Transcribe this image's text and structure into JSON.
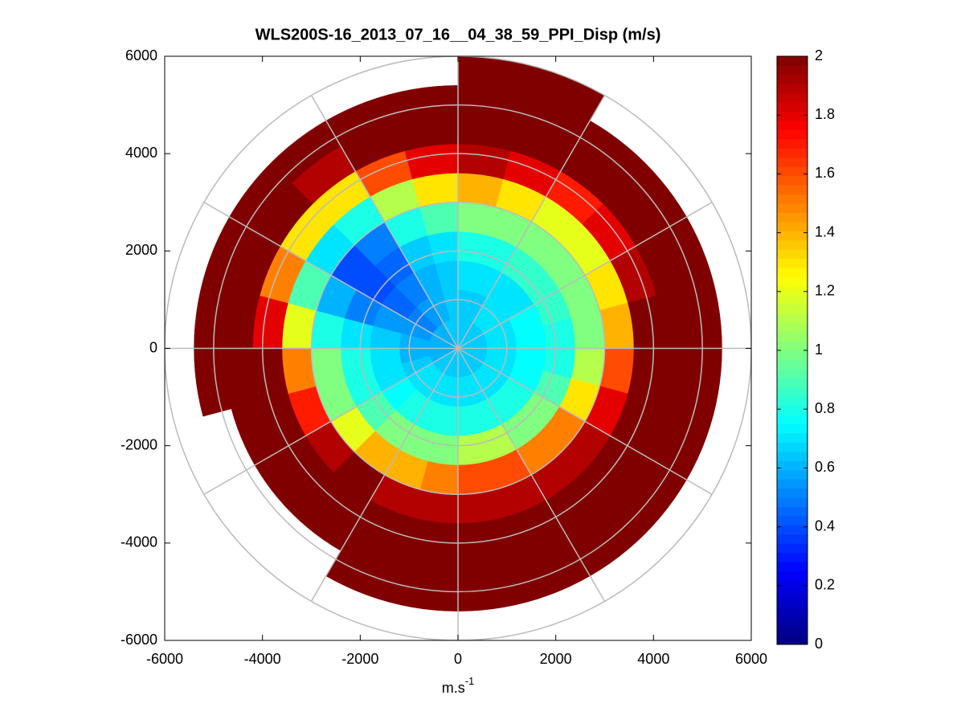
{
  "chart_data": {
    "type": "polar_heatmap",
    "title": "WLS200S-16_2013_07_16__04_38_59_PPI_Disp (m/s)",
    "xlabel": {
      "base": "m.s",
      "superscript": "-1"
    },
    "xlim": [
      -6000,
      6000
    ],
    "ylim": [
      -6000,
      6000
    ],
    "xticks": [
      -6000,
      -4000,
      -2000,
      0,
      2000,
      4000,
      6000
    ],
    "yticks": [
      -6000,
      -4000,
      -2000,
      0,
      2000,
      4000,
      6000
    ],
    "clim": [
      0,
      2
    ],
    "cticks": [
      0,
      0.2,
      0.4,
      0.6,
      0.8,
      1,
      1.2,
      1.4,
      1.6,
      1.8,
      2
    ],
    "colormap": "jet",
    "azimuth_edges": [
      0,
      15,
      30,
      45,
      60,
      75,
      90,
      105,
      120,
      135,
      150,
      165,
      180,
      195,
      210,
      225,
      240,
      255,
      270,
      285,
      300,
      315,
      330,
      345,
      360
    ],
    "range_edges": [
      0,
      600,
      1200,
      1800,
      2400,
      3000,
      3600,
      4200,
      4800,
      5400,
      6000
    ],
    "values": [
      [
        0.65,
        0.65,
        0.7,
        0.8,
        1.0,
        1.4,
        1.9,
        2,
        2,
        2
      ],
      [
        0.65,
        0.65,
        0.7,
        0.8,
        1.0,
        1.3,
        1.8,
        2,
        2,
        2
      ],
      [
        0.65,
        0.7,
        0.7,
        0.85,
        1.0,
        1.2,
        1.7,
        2,
        2,
        null
      ],
      [
        0.65,
        0.7,
        0.7,
        0.85,
        1.0,
        1.2,
        1.8,
        2,
        2,
        null
      ],
      [
        0.65,
        0.7,
        0.75,
        0.85,
        1.0,
        1.3,
        1.9,
        2,
        2,
        null
      ],
      [
        0.65,
        0.7,
        0.75,
        0.8,
        1.0,
        1.4,
        2,
        2,
        2,
        null
      ],
      [
        0.65,
        0.7,
        0.75,
        0.8,
        1.1,
        1.6,
        2,
        2,
        2,
        null
      ],
      [
        0.65,
        0.7,
        0.75,
        0.9,
        1.3,
        1.8,
        2,
        2,
        2,
        null
      ],
      [
        0.65,
        0.7,
        0.8,
        1.0,
        1.5,
        1.9,
        2,
        2,
        2,
        null
      ],
      [
        0.65,
        0.7,
        0.8,
        1.0,
        1.5,
        1.9,
        2,
        2,
        2,
        null
      ],
      [
        0.65,
        0.7,
        0.8,
        1.1,
        1.6,
        1.9,
        2,
        2,
        2,
        null
      ],
      [
        0.65,
        0.7,
        0.8,
        1.1,
        1.6,
        1.9,
        2,
        2,
        2,
        null
      ],
      [
        0.65,
        0.7,
        0.8,
        1.0,
        1.5,
        1.9,
        2,
        2,
        2,
        null
      ],
      [
        0.65,
        0.7,
        0.8,
        1.0,
        1.4,
        1.9,
        2,
        2,
        2,
        null
      ],
      [
        0.65,
        0.7,
        0.8,
        1.0,
        1.4,
        2,
        2,
        2,
        null,
        null
      ],
      [
        0.65,
        0.7,
        0.75,
        0.9,
        1.2,
        1.9,
        2,
        2,
        null,
        null
      ],
      [
        0.6,
        0.65,
        0.7,
        0.8,
        1.0,
        1.7,
        2,
        2,
        null,
        null
      ],
      [
        0.6,
        0.6,
        0.7,
        0.8,
        1.0,
        1.5,
        2,
        2,
        2,
        null
      ],
      [
        0.6,
        0.6,
        0.65,
        0.7,
        0.8,
        1.2,
        1.8,
        2,
        2,
        null
      ],
      [
        0.6,
        0.55,
        0.55,
        0.5,
        0.6,
        0.9,
        1.5,
        2,
        2,
        null
      ],
      [
        0.6,
        0.5,
        0.45,
        0.4,
        0.4,
        0.7,
        1.3,
        2,
        2,
        null
      ],
      [
        0.6,
        0.55,
        0.5,
        0.45,
        0.5,
        0.8,
        1.3,
        1.9,
        2,
        null
      ],
      [
        0.65,
        0.6,
        0.6,
        0.65,
        0.8,
        1.1,
        1.6,
        2,
        2,
        null
      ],
      [
        0.65,
        0.65,
        0.65,
        0.7,
        0.9,
        1.3,
        1.8,
        2,
        2,
        null
      ]
    ]
  }
}
